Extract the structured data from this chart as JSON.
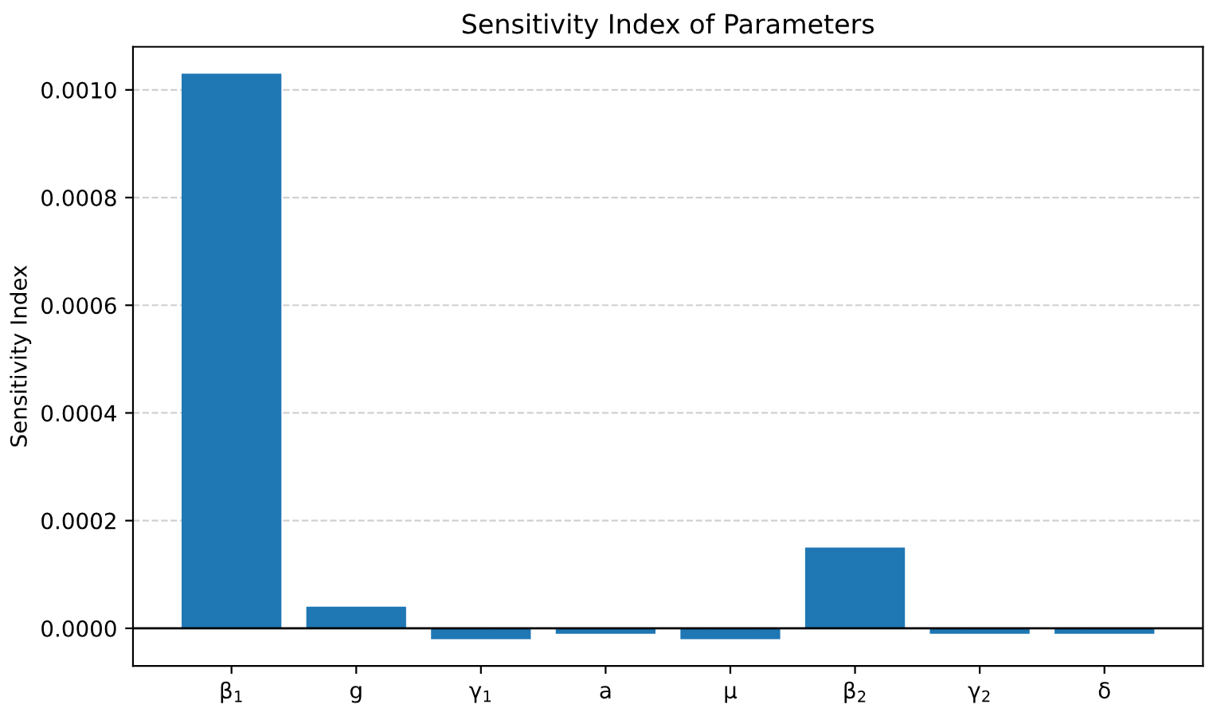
{
  "chart_data": {
    "type": "bar",
    "title": "Sensitivity Index of Parameters",
    "ylabel": "Sensitivity Index",
    "categories": [
      "β$_{1}$",
      "g",
      "γ$_{1}$",
      "a",
      "μ",
      "β$_{2}$",
      "γ$_{2}$",
      "δ"
    ],
    "values": [
      0.00103,
      4e-05,
      -2e-05,
      -1e-05,
      -2e-05,
      0.00015,
      -1e-05,
      -1e-05
    ],
    "color": "#1f77b4",
    "ylim": [
      -7e-05,
      0.00108
    ],
    "yticks": [
      {
        "value": 0,
        "label": "0.0000"
      },
      {
        "value": 0.0002,
        "label": "0.0002"
      },
      {
        "value": 0.0004,
        "label": "0.0004"
      },
      {
        "value": 0.0006,
        "label": "0.0006"
      },
      {
        "value": 0.0008,
        "label": "0.0008"
      },
      {
        "value": 0.001,
        "label": "0.0010"
      }
    ],
    "grid": "y",
    "ref_lines": [
      {
        "axis": "y",
        "value": 0,
        "color": "#000000",
        "line_style": "solid"
      }
    ]
  }
}
